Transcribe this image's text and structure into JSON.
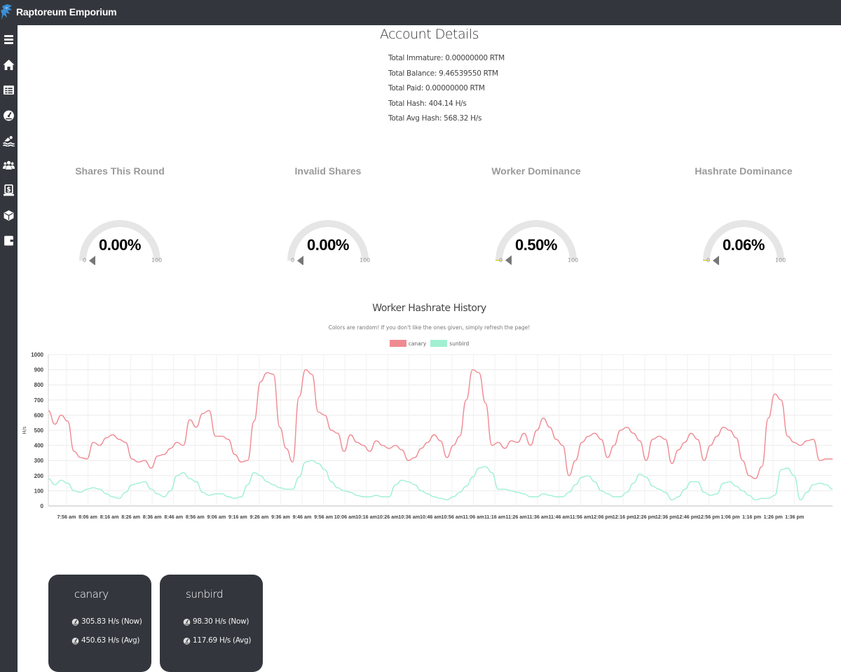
{
  "app": {
    "title": "Raptoreum Emporium"
  },
  "sidebar": {
    "items": [
      {
        "icon": "menu-icon",
        "label": "Menu"
      },
      {
        "icon": "home-icon",
        "label": "Home"
      },
      {
        "icon": "table-icon",
        "label": "Stats"
      },
      {
        "icon": "dashboard-icon",
        "label": "Dashboard"
      },
      {
        "icon": "pool-icon",
        "label": "Pools"
      },
      {
        "icon": "users-icon",
        "label": "Miners"
      },
      {
        "icon": "payments-icon",
        "label": "Payments"
      },
      {
        "icon": "blocks-icon",
        "label": "Blocks"
      },
      {
        "icon": "wallet-icon",
        "label": "Wallet"
      }
    ]
  },
  "account": {
    "title": "Account Details",
    "lines": [
      "Total Immature: 0.00000000 RTM",
      "Total Balance: 9.46539550 RTM",
      "Total Paid: 0.00000000 RTM",
      "Total Hash: 404.14 H/s",
      "Total Avg Hash: 568.32 H/s"
    ]
  },
  "gauges": [
    {
      "title": "Shares This Round",
      "value": "0.00%",
      "percent": 0.0,
      "min": "0",
      "max": "100"
    },
    {
      "title": "Invalid Shares",
      "value": "0.00%",
      "percent": 0.0,
      "min": "0",
      "max": "100"
    },
    {
      "title": "Worker Dominance",
      "value": "0.50%",
      "percent": 0.5,
      "min": "0",
      "max": "100"
    },
    {
      "title": "Hashrate Dominance",
      "value": "0.06%",
      "percent": 0.06,
      "min": "0",
      "max": "100"
    }
  ],
  "chart": {
    "title": "Worker Hashrate History",
    "subtitle": "Colors are random! If you don't like the ones given, simply refresh the page!",
    "colors": {
      "canary": "#f08a92",
      "sunbird": "#a0f0d2"
    }
  },
  "chart_data": {
    "type": "line",
    "title": "Worker Hashrate History",
    "xlabel": "",
    "ylabel": "H/s",
    "ylim": [
      0,
      1000
    ],
    "yticks": [
      0,
      100,
      200,
      300,
      400,
      500,
      600,
      700,
      800,
      900,
      1000
    ],
    "grid": true,
    "legend": "top-center",
    "x_start": "7:51 am",
    "x_end": "1:42 pm",
    "x_ticks": [
      "7:56 am",
      "8:06 am",
      "8:16 am",
      "8:26 am",
      "8:36 am",
      "8:46 am",
      "8:56 am",
      "9:06 am",
      "9:16 am",
      "9:26 am",
      "9:36 am",
      "9:46 am",
      "9:56 am",
      "10:06 am",
      "10:16 am",
      "10:26 am",
      "10:36 am",
      "10:46 am",
      "10:56 am",
      "11:06 am",
      "11:16 am",
      "11:26 am",
      "11:36 am",
      "11:46 am",
      "11:56 am",
      "12:06 pm",
      "12:16 pm",
      "12:26 pm",
      "12:36 pm",
      "12:46 pm",
      "12:56 pm",
      "1:06 pm",
      "1:16 pm",
      "1:26 pm",
      "1:36 pm"
    ],
    "series": [
      {
        "name": "canary",
        "values": [
          630,
          540,
          600,
          560,
          360,
          320,
          310,
          420,
          400,
          450,
          470,
          440,
          420,
          310,
          290,
          300,
          250,
          330,
          340,
          380,
          420,
          400,
          570,
          520,
          610,
          630,
          460,
          460,
          440,
          340,
          290,
          300,
          560,
          820,
          880,
          870,
          520,
          380,
          290,
          720,
          900,
          870,
          620,
          600,
          500,
          480,
          360,
          470,
          420,
          400,
          360,
          430,
          400,
          380,
          400,
          370,
          300,
          320,
          380,
          420,
          470,
          430,
          320,
          400,
          460,
          700,
          900,
          880,
          680,
          400,
          420,
          380,
          430,
          420,
          480,
          400,
          500,
          580,
          520,
          440,
          400,
          200,
          300,
          420,
          460,
          480,
          440,
          320,
          400,
          500,
          520,
          480,
          430,
          300,
          440,
          460,
          440,
          280,
          370,
          420,
          480,
          440,
          300,
          400,
          460,
          520,
          500,
          450,
          300,
          200,
          180,
          260,
          580,
          740,
          700,
          460,
          420,
          400,
          430,
          440,
          300,
          310,
          310
        ]
      },
      {
        "name": "sunbird",
        "values": [
          180,
          140,
          170,
          150,
          100,
          90,
          110,
          120,
          110,
          80,
          60,
          50,
          90,
          140,
          150,
          160,
          110,
          80,
          60,
          100,
          200,
          220,
          180,
          160,
          90,
          70,
          80,
          80,
          60,
          50,
          60,
          140,
          220,
          200,
          160,
          140,
          120,
          110,
          110,
          190,
          290,
          300,
          280,
          240,
          160,
          120,
          100,
          90,
          70,
          60,
          60,
          70,
          60,
          60,
          140,
          170,
          160,
          140,
          100,
          80,
          60,
          50,
          40,
          60,
          90,
          130,
          190,
          250,
          260,
          220,
          110,
          110,
          100,
          90,
          80,
          60,
          60,
          80,
          70,
          60,
          60,
          90,
          140,
          190,
          200,
          160,
          100,
          80,
          60,
          60,
          90,
          150,
          210,
          190,
          130,
          110,
          90,
          40,
          60,
          110,
          160,
          160,
          90,
          70,
          80,
          150,
          160,
          130,
          100,
          70,
          40,
          50,
          50,
          70,
          240,
          250,
          200,
          40,
          90,
          140,
          150,
          140,
          110
        ]
      }
    ]
  },
  "workers": [
    {
      "name": "canary",
      "now": "305.83 H/s (Now)",
      "avg": "450.63 H/s (Avg)"
    },
    {
      "name": "sunbird",
      "now": "98.30 H/s (Now)",
      "avg": "117.69 H/s (Avg)"
    }
  ]
}
